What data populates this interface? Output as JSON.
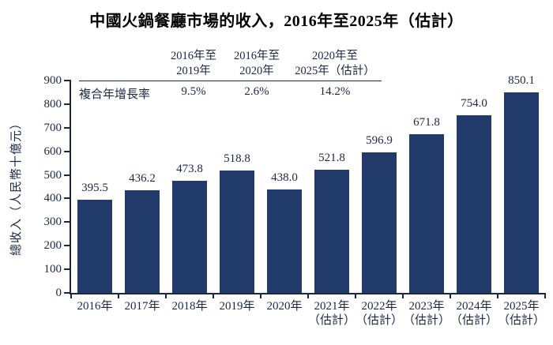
{
  "title": "中國火鍋餐廳市場的收入，2016年至2025年（估計）",
  "cagr_table": {
    "row_label": "複合年增長率",
    "columns": [
      {
        "header_line1": "2016年至",
        "header_line2": "2019年",
        "value": "9.5%"
      },
      {
        "header_line1": "2016年至",
        "header_line2": "2020年",
        "value": "2.6%"
      },
      {
        "header_line1": "2020年至",
        "header_line2": "2025年（估計）",
        "value": "14.2%"
      }
    ]
  },
  "chart_data": {
    "type": "bar",
    "title": "中國火鍋餐廳市場的收入，2016年至2025年（估計）",
    "ylabel": "總收入（人民幣十億元）",
    "xlabel": "",
    "ylim": [
      0,
      900
    ],
    "y_ticks": [
      0,
      100,
      200,
      300,
      400,
      500,
      600,
      700,
      800,
      900
    ],
    "grid": false,
    "legend_position": "none",
    "categories": [
      "2016年",
      "2017年",
      "2018年",
      "2019年",
      "2020年",
      "2021年\n（估計）",
      "2022年\n（估計）",
      "2023年\n（估計）",
      "2024年\n（估計）",
      "2025年\n（估計）"
    ],
    "values": [
      395.5,
      436.2,
      473.8,
      518.8,
      438.0,
      521.8,
      596.9,
      671.8,
      754.0,
      850.1
    ],
    "bar_color": "#203A69",
    "text_color": "#1c2742",
    "axis_color": "#1c2742"
  }
}
